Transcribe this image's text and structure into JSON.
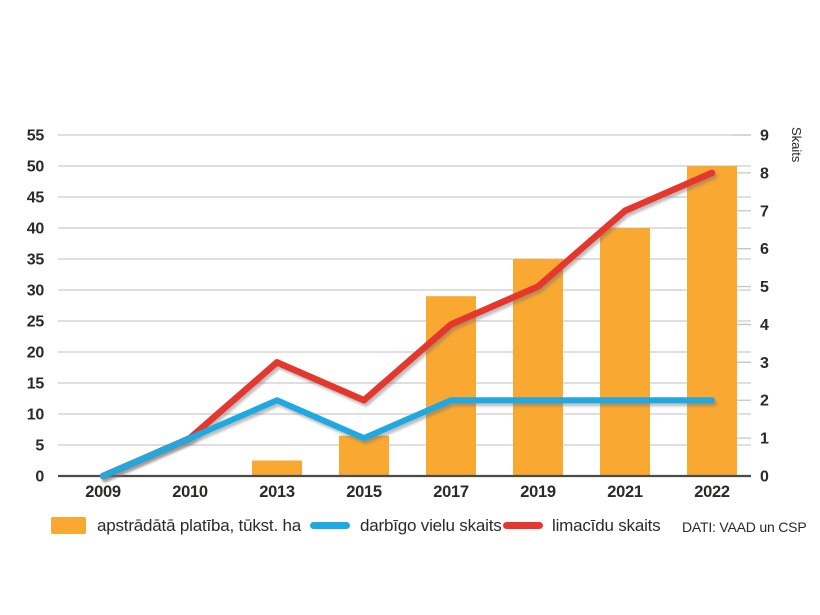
{
  "chart_data": {
    "type": "combo",
    "title": "",
    "categories": [
      "2009",
      "2010",
      "2013",
      "2015",
      "2017",
      "2019",
      "2021",
      "2022"
    ],
    "series": [
      {
        "name": "apstrādātā platība, tūkst. ha",
        "type": "bar",
        "axis": "left",
        "color": "#F9A831",
        "values": [
          0,
          0,
          2.5,
          6.5,
          29,
          35,
          40,
          50
        ]
      },
      {
        "name": "limacīdu skaits",
        "type": "line",
        "axis": "right",
        "color": "#E6372E",
        "values": [
          0,
          1,
          3,
          2,
          4,
          5,
          7,
          8
        ]
      },
      {
        "name": "darbīgo vielu skaits",
        "type": "line",
        "axis": "right",
        "color": "#1FA9E2",
        "values": [
          0,
          1,
          2,
          1,
          2,
          2,
          2,
          2
        ]
      }
    ],
    "left_axis": {
      "min": 0,
      "max": 55,
      "step": 5
    },
    "right_axis": {
      "min": 0,
      "max": 9,
      "step": 1,
      "label": "Skaits"
    },
    "grid": true,
    "legend_position": "bottom",
    "source": "DATI: VAAD un CSP"
  },
  "legend": {
    "bar_label": "apstrādātā platība, tūkst. ha",
    "blue_label": "darbīgo vielu skaits",
    "red_label": "limacīdu skaits",
    "source": "DATI: VAAD un CSP"
  },
  "styles": {
    "grid_color": "#CCCCCC",
    "axis_color": "#4B4B4B",
    "tick_color": "#C6C6C6",
    "text_color": "#2B2A29",
    "background": "#FFFFFF"
  }
}
